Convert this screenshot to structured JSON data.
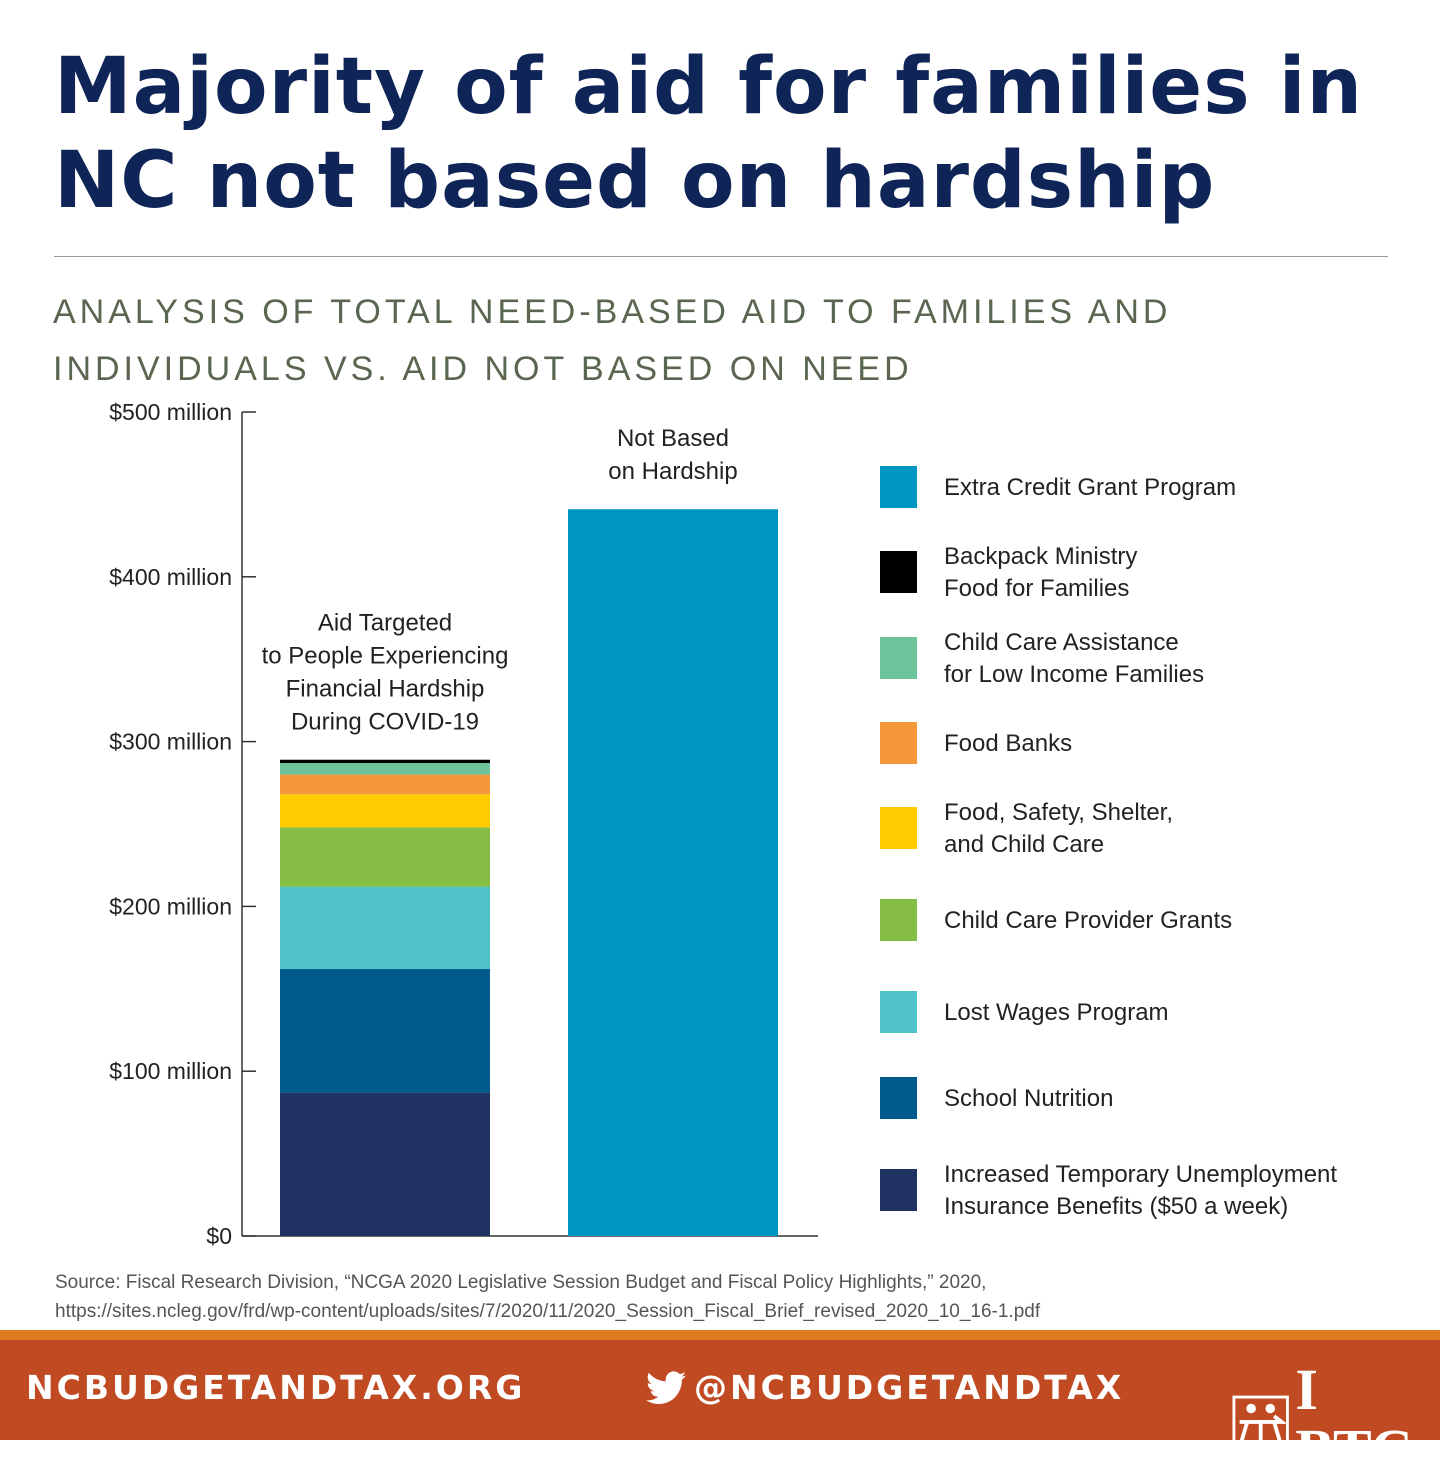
{
  "title": "Majority of aid for families in NC not based on hardship",
  "subtitle": "ANALYSIS OF TOTAL NEED-BASED AID TO FAMILIES AND INDIVIDUALS VS. AID NOT BASED ON NEED",
  "chart_data": {
    "type": "bar",
    "stacked": true,
    "ylim": [
      0,
      500
    ],
    "yticks": [
      0,
      100,
      200,
      300,
      400,
      500
    ],
    "ytick_labels": [
      "$0",
      "$100 million",
      "$200 million",
      "$300 million",
      "$400 million",
      "$500 million"
    ],
    "categories": [
      "Aid Targeted to People Experiencing Financial Hardship During COVID-19",
      "Not Based on Hardship"
    ],
    "annotations": [
      [
        "Aid Targeted",
        "to People Experiencing",
        "Financial Hardship",
        "During COVID-19"
      ],
      [
        "Not Based",
        "on Hardship"
      ]
    ],
    "series": [
      {
        "name": "Increased Temporary Unemployment Insurance Benefits ($50 a week)",
        "label_lines": [
          "Increased Temporary Unemployment",
          "Insurance Benefits ($50 a week)"
        ],
        "color": "#1f3262",
        "values": [
          87,
          0
        ]
      },
      {
        "name": "School Nutrition",
        "label_lines": [
          "School Nutrition"
        ],
        "color": "#005a8c",
        "values": [
          75,
          0
        ]
      },
      {
        "name": "Lost Wages Program",
        "label_lines": [
          "Lost Wages Program"
        ],
        "color": "#4fc2c8",
        "values": [
          50,
          0
        ]
      },
      {
        "name": "Child Care Provider Grants",
        "label_lines": [
          "Child Care Provider Grants"
        ],
        "color": "#86bd44",
        "values": [
          36,
          0
        ]
      },
      {
        "name": "Food, Safety, Shelter, and Child Care",
        "label_lines": [
          "Food, Safety, Shelter,",
          "and Child Care"
        ],
        "color": "#ffcc00",
        "values": [
          20,
          0
        ]
      },
      {
        "name": "Food Banks",
        "label_lines": [
          "Food Banks"
        ],
        "color": "#f5983b",
        "values": [
          12,
          0
        ]
      },
      {
        "name": "Child Care Assistance for Low Income Families",
        "label_lines": [
          "Child Care Assistance",
          "for Low Income Families"
        ],
        "color": "#6ec49a",
        "values": [
          7,
          0
        ]
      },
      {
        "name": "Backpack Ministry Food for Families",
        "label_lines": [
          "Backpack Ministry",
          "Food for Families"
        ],
        "color": "#000000",
        "values": [
          2,
          0
        ]
      },
      {
        "name": "Extra Credit Grant Program",
        "label_lines": [
          "Extra Credit Grant Program"
        ],
        "color": "#0096c4",
        "values": [
          0,
          441
        ]
      }
    ]
  },
  "source": {
    "line1": "Source: Fiscal Research Division, “NCGA 2020 Legislative Session Budget and Fiscal Policy Highlights,” 2020,",
    "line2": "https://sites.ncleg.gov/frd/wp-content/uploads/sites/7/2020/11/2020_Session_Fiscal_Brief_revised_2020_10_16-1.pdf"
  },
  "footer": {
    "website": "NCBUDGETANDTAX.ORG",
    "twitter_handle": "@NCBUDGETANDTAX",
    "twitter_icon": "twitter-bird-icon",
    "brand": "I BTC",
    "colors": {
      "bar": "#c04a22",
      "stripe": "#e07b21"
    }
  }
}
